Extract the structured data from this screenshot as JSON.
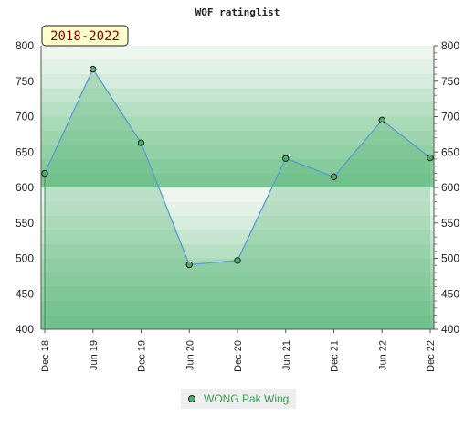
{
  "chart_data": {
    "type": "area",
    "title": "WOF ratinglist",
    "range_label": "2018-2022",
    "xlabel": "",
    "ylabel": "",
    "categories": [
      "Dec 18",
      "Jun 19",
      "Dec 19",
      "Jun 20",
      "Dec 20",
      "Jun 21",
      "Dec 21",
      "Jun 22",
      "Dec 22"
    ],
    "series": [
      {
        "name": "WONG Pak Wing",
        "values": [
          620,
          767,
          663,
          491,
          497,
          641,
          615,
          695,
          642
        ]
      }
    ],
    "ylim": [
      400,
      800
    ],
    "yticks": [
      400,
      450,
      500,
      550,
      600,
      650,
      700,
      750,
      800
    ],
    "grid": true,
    "legend": "bottom-center",
    "colors": {
      "line": "#5b9bd5",
      "fill": "#7cc795",
      "marker": "#4caf6a",
      "band_dark": "#b7dfc3",
      "band_light": "#eef6f0",
      "range_box": "#ffffcc",
      "legend_text": "#3a9a50"
    }
  }
}
